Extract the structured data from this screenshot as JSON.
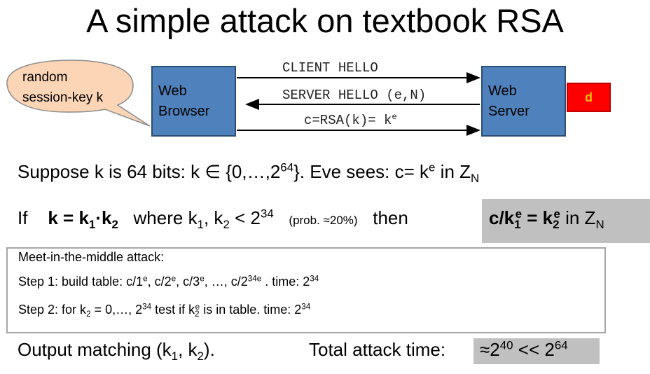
{
  "title": "A simple attack on textbook RSA",
  "bubble": {
    "line1": "random",
    "line2": "session-key k"
  },
  "browser": {
    "line1": "Web",
    "line2": "Browser"
  },
  "server": {
    "line1": "Web",
    "line2": "Server"
  },
  "secret_key": "d",
  "messages": {
    "client_hello": "CLIENT HELLO",
    "server_hello": "SERVER HELLO (e,N)",
    "cipher_prefix": "c=RSA(k)= k",
    "cipher_exp": "e"
  },
  "colors": {
    "bubble_fill": "#fbd5b5",
    "box_fill": "#4f81bd",
    "d_fill": "#ff0000",
    "d_text": "#ffc000",
    "highlight": "#c0c0c0"
  },
  "line1": {
    "a": "Suppose  k  is 64 bits:   k ∈ {0,…,2",
    "a_sup": "64",
    "b": "}.     Eve sees:    c= k",
    "b_sup": "e",
    "c": "   in  Z",
    "c_sub": "N"
  },
  "line2": {
    "if": "If",
    "k": "k = k",
    "k_sub1": "1",
    "dot": "·k",
    "k_sub2": "2",
    "where": "where   k",
    "w_sub1": "1",
    "comma": ", k",
    "w_sub2": "2",
    "lt": " < 2",
    "lt_sup": "34",
    "prob": "(prob. ≈20%)",
    "then": "then",
    "hl_a": "c/k",
    "hl_sub1": "1",
    "hl_sup1": "e",
    "hl_b": " = k",
    "hl_sub2": "2",
    "hl_sup2": "e",
    "hl_c": "  in  Z",
    "hl_subN": "N"
  },
  "mitm": {
    "heading": "Meet-in-the-middle attack:",
    "step1": {
      "a": "Step 1:   build table:   c/1",
      "s1": "e",
      "b": ", c/2",
      "s2": "e",
      "c": ", c/3",
      "s3": "e",
      "d": ", …, c/2",
      "s4": "34e",
      "e": " .   time:  2",
      "s5": "34"
    },
    "step2": {
      "a": "Step 2:   for  k",
      "sub1": "2",
      "b": " = 0,…, 2",
      "sup1": "34",
      "c": "  test if  k",
      "sub2": "2",
      "sup2": "e",
      "d": "  is in table.   time: 2",
      "sup3": "34"
    }
  },
  "output": {
    "a": "Output matching   (k",
    "sub1": "1",
    "b": ", k",
    "sub2": "2",
    "c": ").",
    "total": "Total attack time:",
    "hl_a": "≈2",
    "hl_sup1": "40",
    "hl_b": " << 2",
    "hl_sup2": "64"
  }
}
